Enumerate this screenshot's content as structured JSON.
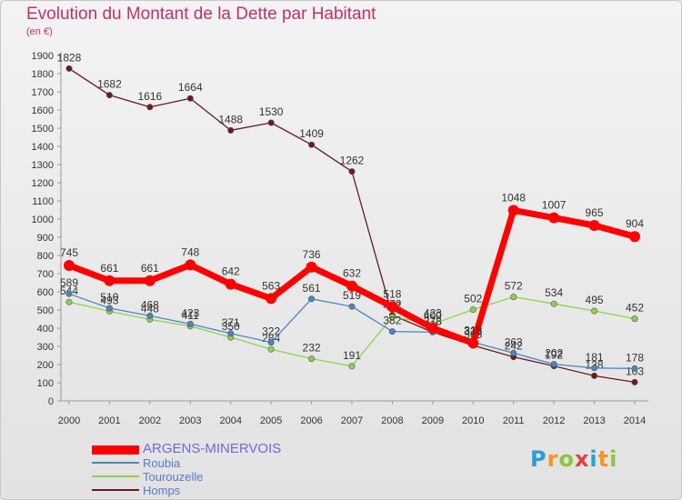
{
  "header": {
    "title": "Evolution du Montant de la Dette par Habitant",
    "subtitle": "(en €)"
  },
  "brand": {
    "logo_text": "Proxiti",
    "letters": [
      "P",
      "r",
      "o",
      "x",
      "i",
      "t",
      "i"
    ],
    "letter_colors": [
      "#2a9fd6",
      "#f7941d",
      "#8cc63f",
      "#e2413b",
      "#2a9fd6",
      "#f7941d",
      "#8cc63f"
    ]
  },
  "chart_data": {
    "type": "line",
    "title": "Evolution du Montant de la Dette par Habitant",
    "subtitle": "(en €)",
    "xlabel": "",
    "ylabel": "",
    "x": [
      2000,
      2001,
      2002,
      2003,
      2004,
      2005,
      2006,
      2007,
      2008,
      2009,
      2010,
      2011,
      2012,
      2013,
      2014
    ],
    "ylim": [
      0,
      1900
    ],
    "yticks": [
      0,
      100,
      200,
      300,
      400,
      500,
      600,
      700,
      800,
      900,
      1000,
      1100,
      1200,
      1300,
      1400,
      1500,
      1600,
      1700,
      1800,
      1900
    ],
    "grid": false,
    "legend_position": "bottom-left",
    "series": [
      {
        "name": "Homps",
        "color": "#6b1a1f",
        "values": [
          1828,
          1682,
          1616,
          1664,
          1488,
          1530,
          1409,
          1262,
          472,
          378,
          305,
          242,
          192,
          138,
          103
        ]
      },
      {
        "name": "Tourouzelle",
        "color": "#8fd14f",
        "values": [
          544,
          493,
          448,
          411,
          350,
          284,
          232,
          191,
          462,
          423,
          502,
          572,
          534,
          495,
          452
        ]
      },
      {
        "name": "Roubia",
        "color": "#4a86c0",
        "values": [
          589,
          510,
          468,
          423,
          371,
          322,
          561,
          519,
          382,
          378,
          323,
          263,
          202,
          181,
          178
        ]
      },
      {
        "name": "ARGENS-MINERVOIS",
        "color": "#ff0000",
        "values": [
          745,
          661,
          661,
          748,
          642,
          563,
          736,
          632,
          518,
          400,
          318,
          1048,
          1007,
          965,
          904
        ]
      }
    ]
  }
}
